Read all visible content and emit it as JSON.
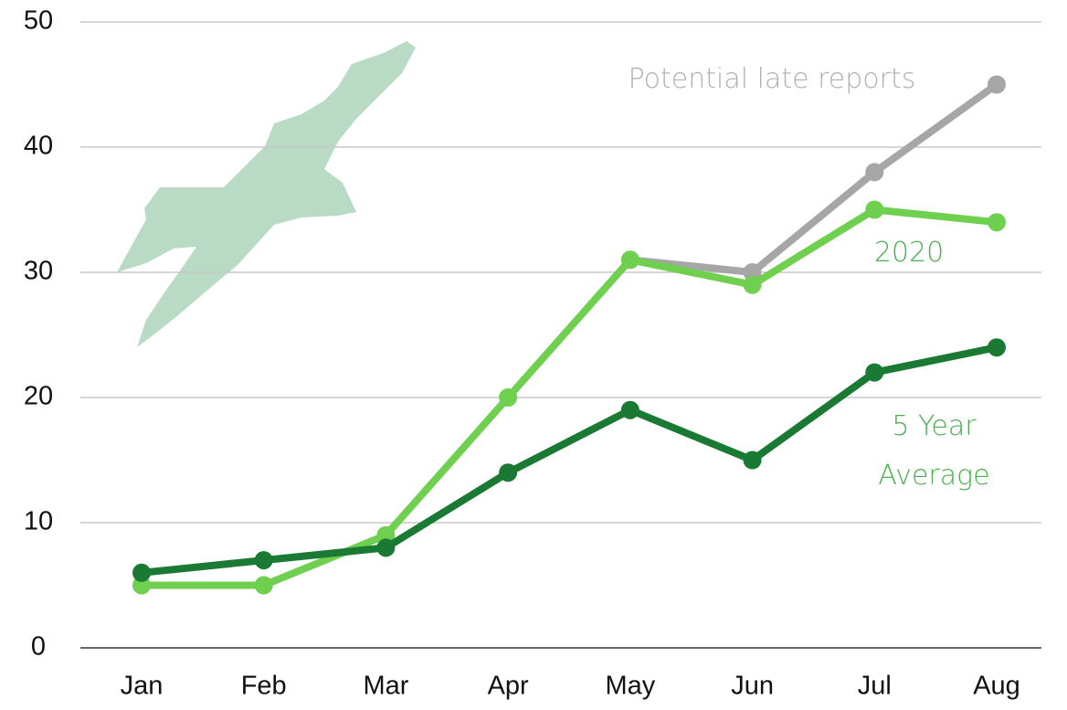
{
  "chart_data": {
    "type": "line",
    "categories": [
      "Jan",
      "Feb",
      "Mar",
      "Apr",
      "May",
      "Jun",
      "Jul",
      "Aug"
    ],
    "series": [
      {
        "name": "Potential late reports",
        "color": "#a6a6a6",
        "values": [
          null,
          null,
          null,
          null,
          31,
          30,
          38,
          45
        ]
      },
      {
        "name": "2020",
        "color": "#6fd04f",
        "values": [
          5,
          5,
          9,
          20,
          31,
          29,
          35,
          34
        ]
      },
      {
        "name": "5 Year Average",
        "color": "#1a7a33",
        "values": [
          6,
          7,
          8,
          14,
          19,
          15,
          22,
          24
        ]
      }
    ],
    "ylim": [
      0,
      50
    ],
    "yticks": [
      0,
      10,
      20,
      30,
      40,
      50
    ],
    "grid": true
  }
}
